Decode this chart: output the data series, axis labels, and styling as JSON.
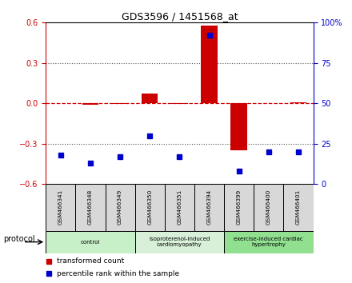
{
  "title": "GDS3596 / 1451568_at",
  "samples": [
    "GSM466341",
    "GSM466348",
    "GSM466349",
    "GSM466350",
    "GSM466351",
    "GSM466394",
    "GSM466399",
    "GSM466400",
    "GSM466401"
  ],
  "transformed_count": [
    0.0,
    -0.01,
    -0.005,
    0.07,
    -0.005,
    0.58,
    -0.35,
    0.0,
    0.005
  ],
  "percentile_rank": [
    18,
    13,
    17,
    30,
    17,
    92,
    8,
    20,
    20
  ],
  "groups": [
    {
      "label": "control",
      "start": 0,
      "end": 3,
      "color": "#c8f0c8"
    },
    {
      "label": "isoproterenol-induced\ncardiomyopathy",
      "start": 3,
      "end": 6,
      "color": "#d8f0d8"
    },
    {
      "label": "exercise-induced cardiac\nhypertrophy",
      "start": 6,
      "end": 9,
      "color": "#90e090"
    }
  ],
  "left_ylim": [
    -0.6,
    0.6
  ],
  "left_yticks": [
    -0.6,
    -0.3,
    0.0,
    0.3,
    0.6
  ],
  "right_ylim": [
    0,
    100
  ],
  "right_yticks": [
    0,
    25,
    50,
    75,
    100
  ],
  "right_yticklabels": [
    "0",
    "25",
    "50",
    "75",
    "100%"
  ],
  "bar_color": "#cc0000",
  "dot_color": "#0000cc",
  "hline_color": "#cc0000",
  "dotted_color": "#555555",
  "bg_color": "#ffffff",
  "legend_red_label": "transformed count",
  "legend_blue_label": "percentile rank within the sample",
  "protocol_label": "protocol",
  "gsm_bg": "#d8d8d8",
  "group_colors": [
    "#c8f0c8",
    "#d8f0d8",
    "#90e090"
  ]
}
